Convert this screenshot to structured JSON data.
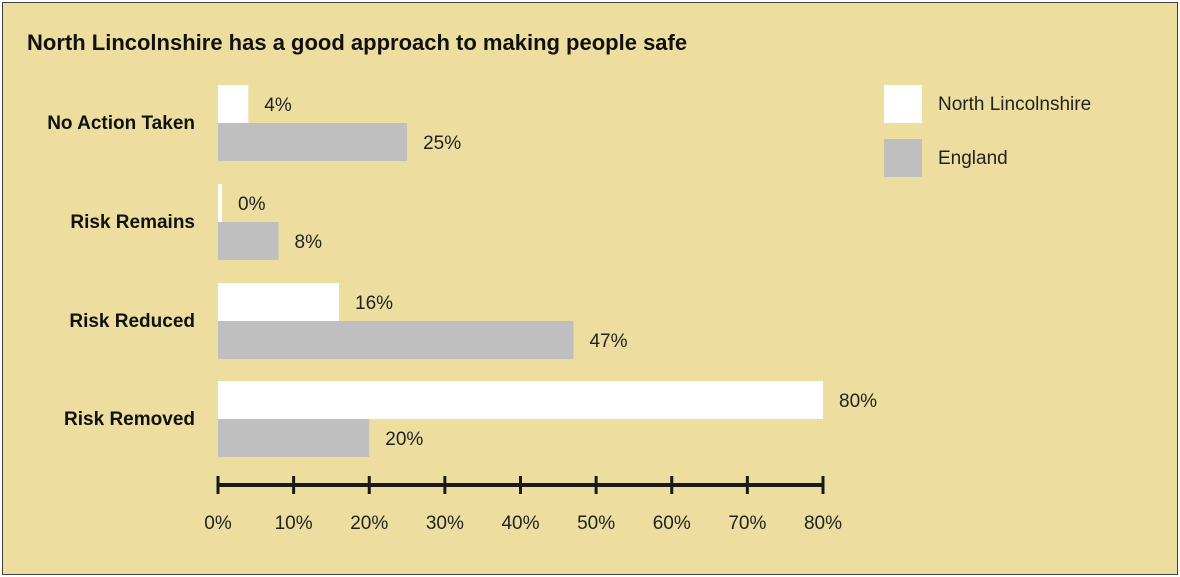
{
  "title": "North Lincolnshire has a good approach to making people safe",
  "chart_data": {
    "type": "bar",
    "orientation": "horizontal",
    "title": "North Lincolnshire has a good approach to making people safe",
    "categories": [
      "No Action Taken",
      "Risk Remains",
      "Risk Reduced",
      "Risk Removed"
    ],
    "series": [
      {
        "name": "North Lincolnshire",
        "color": "#ffffff",
        "values": [
          4,
          0,
          16,
          80
        ],
        "labels": [
          "4%",
          "0%",
          "16%",
          "80%"
        ]
      },
      {
        "name": "England",
        "color": "#bfbfbf",
        "values": [
          25,
          8,
          47,
          20
        ],
        "labels": [
          "25%",
          "8%",
          "47%",
          "20%"
        ]
      }
    ],
    "xlim": [
      0,
      80
    ],
    "xticks": [
      0,
      10,
      20,
      30,
      40,
      50,
      60,
      70,
      80
    ],
    "xtick_labels": [
      "0%",
      "10%",
      "20%",
      "30%",
      "40%",
      "50%",
      "60%",
      "70%",
      "80%"
    ],
    "xlabel": "",
    "ylabel": "",
    "grid": false,
    "legend_position": "top-right",
    "background": "#eddd9f"
  }
}
